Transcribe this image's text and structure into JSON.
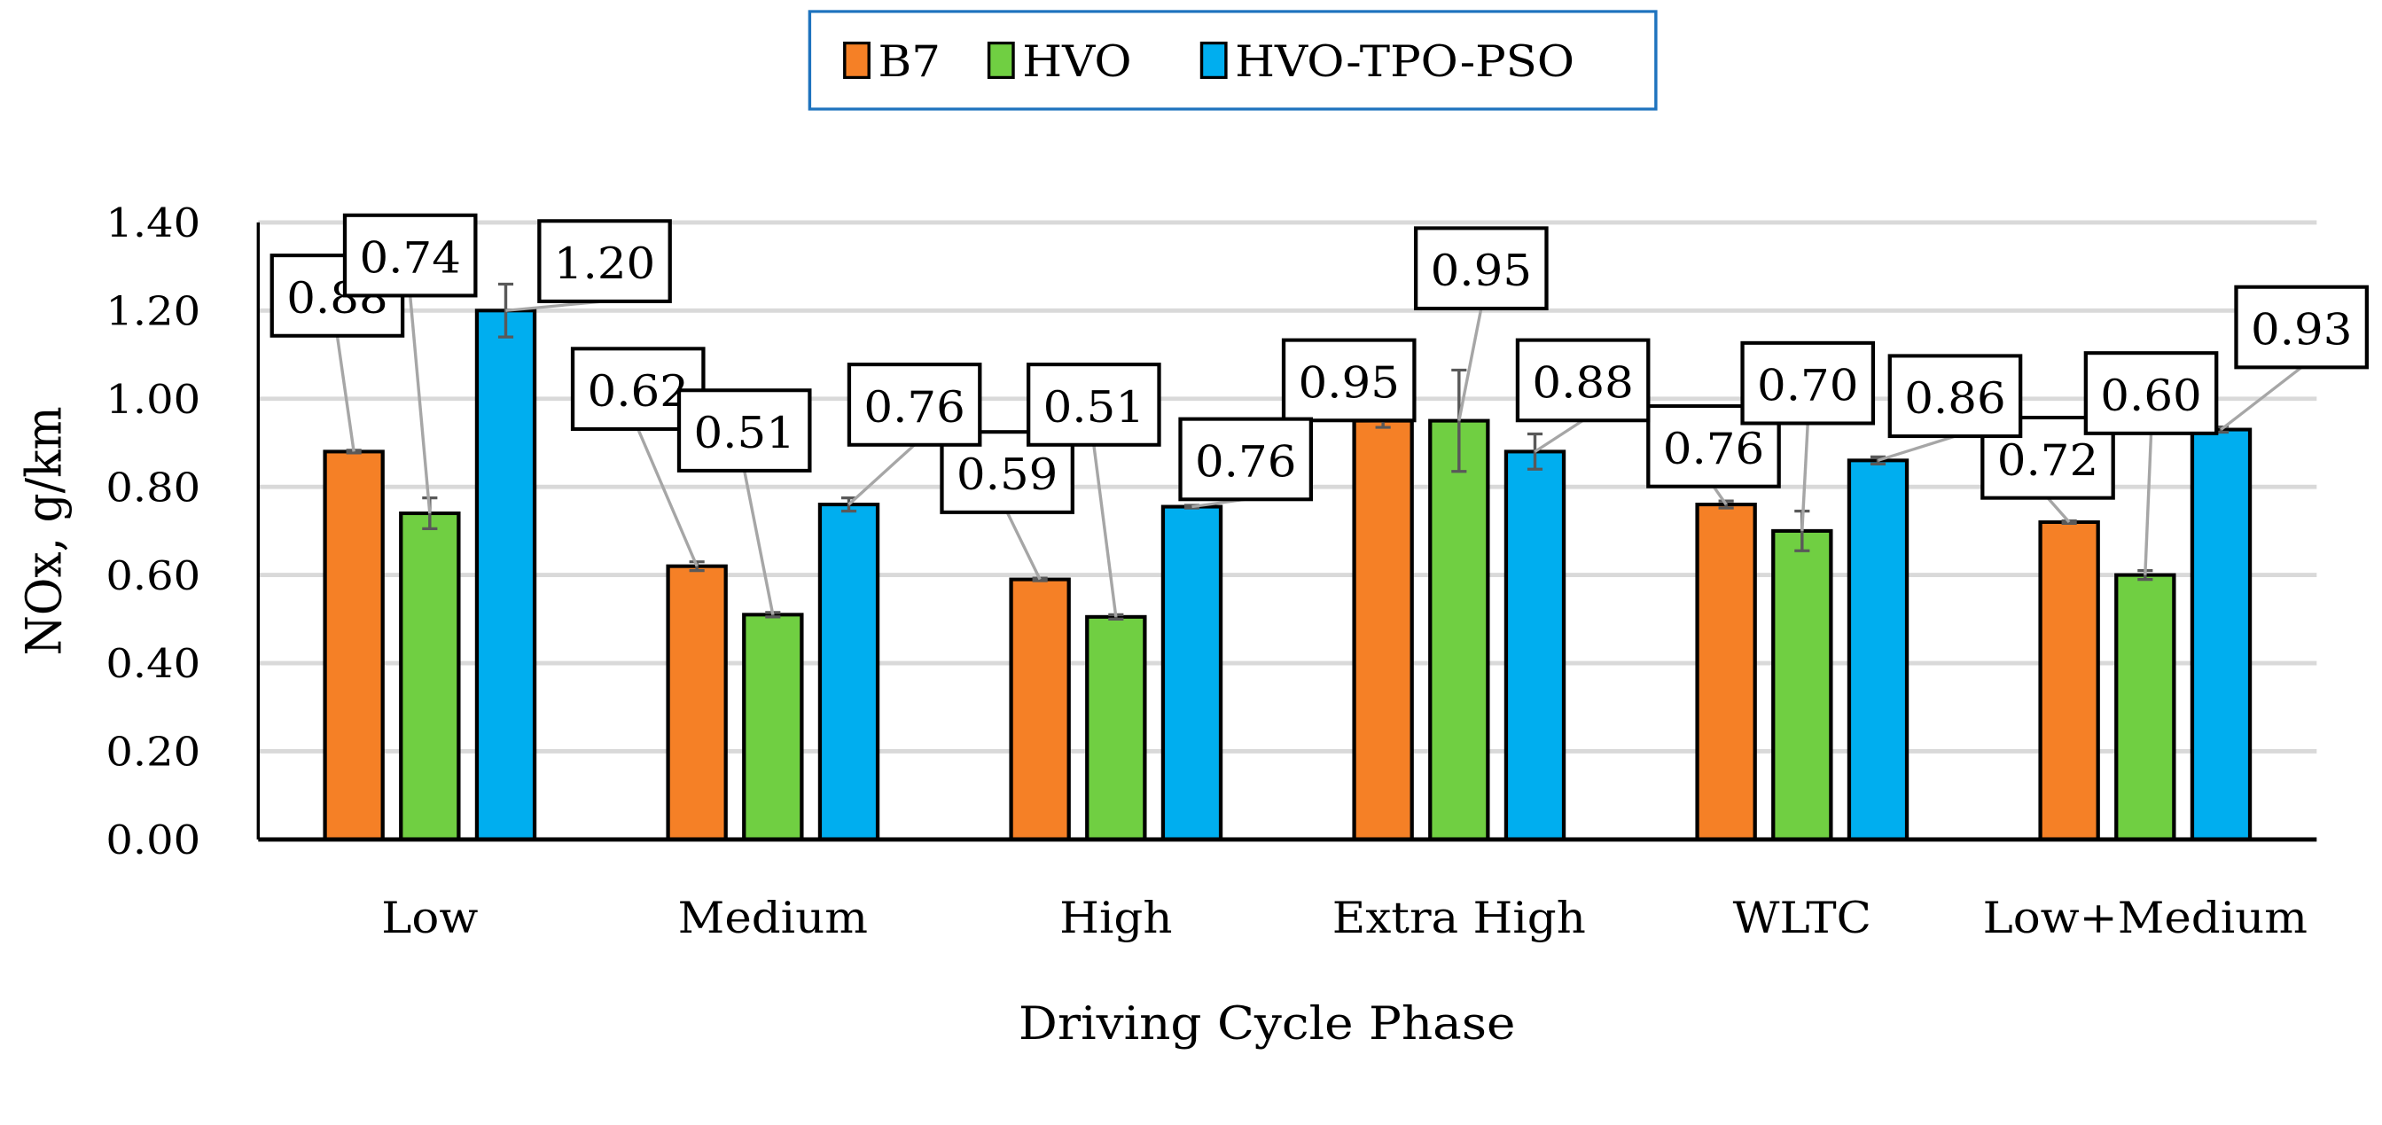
{
  "chart_data": {
    "type": "bar",
    "title": "",
    "xlabel": "Driving Cycle Phase",
    "ylabel": "NOx, g/km",
    "ylim": [
      0,
      1.4
    ],
    "yticks": [
      "0.00",
      "0.20",
      "0.40",
      "0.60",
      "0.80",
      "1.00",
      "1.20",
      "1.40"
    ],
    "ytick_values": [
      0,
      0.2,
      0.4,
      0.6,
      0.8,
      1.0,
      1.2,
      1.4
    ],
    "grid": true,
    "legend_position": "top-center",
    "categories": [
      "Low",
      "Medium",
      "High",
      "Extra High",
      "WLTC",
      "Low+Medium"
    ],
    "series": [
      {
        "name": "B7",
        "color": "#F58026",
        "values": [
          0.88,
          0.62,
          0.59,
          0.95,
          0.76,
          0.72
        ],
        "errors": [
          0.003,
          0.01,
          0.003,
          0.015,
          0.008,
          0.003
        ],
        "labels": [
          "0.88",
          "0.62",
          "0.59",
          "0.95",
          "0.76",
          "0.72"
        ]
      },
      {
        "name": "HVO",
        "color": "#70CF42",
        "values": [
          0.74,
          0.51,
          0.505,
          0.95,
          0.7,
          0.6
        ],
        "errors": [
          0.035,
          0.005,
          0.005,
          0.115,
          0.045,
          0.01
        ],
        "labels": [
          "0.74",
          "0.51",
          "0.51",
          "0.95",
          "0.70",
          "0.60"
        ]
      },
      {
        "name": "HVO-TPO-PSO",
        "color": "#00AEEF",
        "values": [
          1.2,
          0.76,
          0.755,
          0.88,
          0.86,
          0.93
        ],
        "errors": [
          0.06,
          0.015,
          0.003,
          0.04,
          0.008,
          0.006
        ],
        "labels": [
          "1.20",
          "0.76",
          "0.76",
          "0.88",
          "0.86",
          "0.93"
        ]
      }
    ]
  }
}
